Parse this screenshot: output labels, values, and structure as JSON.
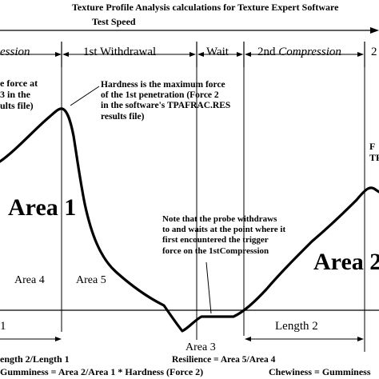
{
  "header": {
    "title": "Texture Profile Analysis calculations for Texture Expert Software",
    "test_speed": "Test Speed"
  },
  "phases": {
    "compression_left": "ession",
    "withdrawal": "1st Withdrawal",
    "wait": "Wait",
    "compression2_prefix": "2nd",
    "compression2_word": "Compression",
    "right_cut": "2"
  },
  "annotations": {
    "left_force": "e force at\n3 in the\nults file)",
    "hardness": "Hardness is the maximum force\nof the 1st penetration (Force 2\nin the software's TPAFRAC.RES\nresults file)",
    "probe_note": "Note that the probe withdraws\nto and waits at the point where it\nfirst encountered the trigger\nforce on the 1stCompression",
    "right_cut": "F\nTPA"
  },
  "areas": {
    "area1": "Area 1",
    "area2": "Area 2",
    "area3": "Area 3",
    "area4": "Area 4",
    "area5": "Area 5"
  },
  "lengths": {
    "length1": "1",
    "length2": "Length 2"
  },
  "formulas": {
    "springiness": "ength 2/Length 1",
    "resilience": "Resilience = Area 5/Area 4",
    "gumminess": "Gumminess = Area 2/Area 1 * Hardness (Force 2)",
    "chewiness": "Chewiness = Gumminess"
  },
  "colors": {
    "ink": "#000000",
    "background": "#ffffff"
  }
}
